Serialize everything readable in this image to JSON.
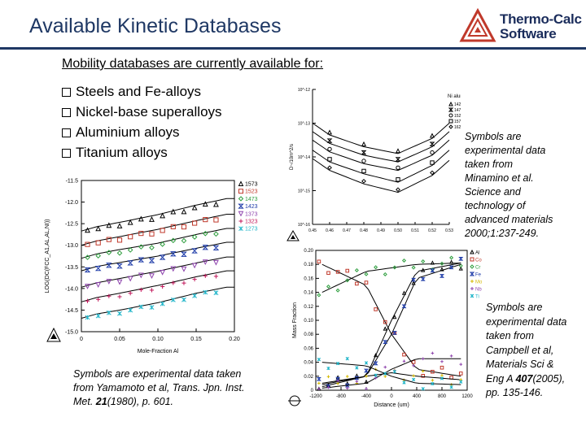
{
  "header": {
    "title": "Available Kinetic Databases",
    "brand_line1": "Thermo-Calc",
    "brand_line2": "Software",
    "brand_color": "#c0392b",
    "accent_color": "#1f3864"
  },
  "intro": {
    "subtitle": "Mobility databases are currently available for:",
    "bullets": [
      "Steels and Fe-alloys",
      "Nickel-base superalloys",
      "Aluminium alloys",
      "Titanium alloys"
    ]
  },
  "notes": {
    "minamino": "Symbols are experimental data taken from Minamino et al. Science and technology of advanced materials 2000;1:237-249.",
    "campbell_before": "Symbols are experimental data taken from Campbell et al, Materials Sci & Eng A ",
    "campbell_bold": "407",
    "campbell_after": "(2005), pp. 135-146.",
    "yamamoto_before": "Symbols are experimental data taken from Yamamoto et al, Trans. Jpn. Inst. Met. ",
    "yamamoto_bold": "21",
    "yamamoto_after": "(1980), p. 601."
  },
  "chart_data": [
    {
      "type": "scatter",
      "xlabel": "Mole-Fraction Al",
      "ylabel": "LOG(DC(FCC_A1,AL,AL,NI))",
      "xlim": [
        0,
        0.2
      ],
      "ylim": [
        -15.0,
        -11.5
      ],
      "xticks": [
        "0",
        "0.05",
        "0.10",
        "0.15",
        "0.20"
      ],
      "yticks": [
        "-11.5",
        "-12.0",
        "-12.5",
        "-13.0",
        "-13.5",
        "-14.0",
        "-14.5",
        "-15.0"
      ],
      "legend_position": "right",
      "series": [
        {
          "name": "1573",
          "color": "#000000",
          "marker": "triangle",
          "values": [
            [
              0.02,
              -12.62
            ],
            [
              0.05,
              -12.52
            ],
            [
              0.1,
              -12.34
            ],
            [
              0.15,
              -12.12
            ],
            [
              0.19,
              -11.97
            ]
          ]
        },
        {
          "name": "1523",
          "color": "#c0392b",
          "marker": "square",
          "values": [
            [
              0.02,
              -12.95
            ],
            [
              0.05,
              -12.85
            ],
            [
              0.1,
              -12.68
            ],
            [
              0.15,
              -12.48
            ],
            [
              0.19,
              -12.33
            ]
          ]
        },
        {
          "name": "1473",
          "color": "#2e9e3e",
          "marker": "diamond",
          "values": [
            [
              0.02,
              -13.25
            ],
            [
              0.05,
              -13.15
            ],
            [
              0.1,
              -13.0
            ],
            [
              0.15,
              -12.8
            ],
            [
              0.19,
              -12.66
            ]
          ]
        },
        {
          "name": "1423",
          "color": "#1c3aa8",
          "marker": "hourglass",
          "values": [
            [
              0.02,
              -13.54
            ],
            [
              0.05,
              -13.45
            ],
            [
              0.1,
              -13.3
            ],
            [
              0.15,
              -13.12
            ],
            [
              0.19,
              -12.98
            ]
          ]
        },
        {
          "name": "1373",
          "color": "#8e44ad",
          "marker": "triangle-down",
          "values": [
            [
              0.02,
              -13.92
            ],
            [
              0.05,
              -13.82
            ],
            [
              0.1,
              -13.65
            ],
            [
              0.15,
              -13.46
            ],
            [
              0.19,
              -13.32
            ]
          ]
        },
        {
          "name": "1323",
          "color": "#c2185b",
          "marker": "plus",
          "values": [
            [
              0.02,
              -14.26
            ],
            [
              0.05,
              -14.16
            ],
            [
              0.1,
              -13.98
            ],
            [
              0.15,
              -13.78
            ],
            [
              0.19,
              -13.64
            ]
          ]
        },
        {
          "name": "1273",
          "color": "#1fb5c9",
          "marker": "star",
          "values": [
            [
              0.02,
              -14.64
            ],
            [
              0.05,
              -14.55
            ],
            [
              0.1,
              -14.38
            ],
            [
              0.15,
              -14.16
            ],
            [
              0.19,
              -14.02
            ]
          ]
        }
      ]
    },
    {
      "type": "scatter",
      "xlabel": "",
      "ylabel": "D~/10m^2/s",
      "xlim": [
        0.45,
        0.53
      ],
      "ylim": [
        -16,
        -12
      ],
      "xticks": [
        "0.45",
        "0.46",
        "0.47",
        "0.48",
        "0.49",
        "0.50",
        "0.51",
        "0.52",
        "0.53"
      ],
      "yticks": [
        "10^-12",
        "10^-13",
        "10^-14",
        "10^-15",
        "10^-16"
      ],
      "legend_title": "Ni aluminide",
      "legend_position": "top-right",
      "series": [
        {
          "name": "1423 K",
          "marker": "triangle",
          "values": [
            [
              0.46,
              -13.35
            ],
            [
              0.48,
              -13.7
            ],
            [
              0.5,
              -13.9
            ],
            [
              0.52,
              -13.45
            ]
          ]
        },
        {
          "name": "1473 K",
          "marker": "hourglass",
          "values": [
            [
              0.46,
              -13.6
            ],
            [
              0.48,
              -13.95
            ],
            [
              0.5,
              -14.15
            ],
            [
              0.52,
              -13.7
            ]
          ]
        },
        {
          "name": "1523 K",
          "marker": "circle",
          "values": [
            [
              0.46,
              -13.85
            ],
            [
              0.48,
              -14.2
            ],
            [
              0.5,
              -14.4
            ],
            [
              0.52,
              -13.95
            ]
          ]
        },
        {
          "name": "1573 K",
          "marker": "square",
          "values": [
            [
              0.46,
              -14.15
            ],
            [
              0.48,
              -14.5
            ],
            [
              0.5,
              -14.75
            ],
            [
              0.52,
              -14.25
            ]
          ]
        },
        {
          "name": "1623 K",
          "marker": "diamond",
          "values": [
            [
              0.46,
              -14.4
            ],
            [
              0.48,
              -14.8
            ],
            [
              0.5,
              -15.05
            ],
            [
              0.52,
              -14.55
            ]
          ]
        }
      ]
    },
    {
      "type": "scatter",
      "xlabel": "Distance (um)",
      "ylabel": "Mass Fraction",
      "xlim": [
        -1200,
        1200
      ],
      "ylim": [
        0,
        0.2
      ],
      "xticks": [
        "-1200",
        "-800",
        "-400",
        "0",
        "400",
        "800",
        "1200"
      ],
      "yticks": [
        "0.20",
        "0.18",
        "0.16",
        "0.14",
        "0.12",
        "0.10",
        "0.08",
        "0.06",
        "0.04",
        "0.02",
        "0"
      ],
      "legend_position": "right",
      "series": [
        {
          "name": "Al",
          "color": "#000000",
          "values": [
            [
              -1100,
              0.005
            ],
            [
              -400,
              0.02
            ],
            [
              0,
              0.1
            ],
            [
              400,
              0.17
            ],
            [
              1100,
              0.182
            ]
          ]
        },
        {
          "name": "Co",
          "color": "#c0392b",
          "values": [
            [
              -1100,
              0.18
            ],
            [
              -400,
              0.15
            ],
            [
              0,
              0.08
            ],
            [
              400,
              0.03
            ],
            [
              1100,
              0.02
            ]
          ]
        },
        {
          "name": "Cr",
          "color": "#2e9e3e",
          "values": [
            [
              -1100,
              0.14
            ],
            [
              -400,
              0.17
            ],
            [
              0,
              0.175
            ],
            [
              400,
              0.18
            ],
            [
              1100,
              0.182
            ]
          ]
        },
        {
          "name": "Fe",
          "color": "#1c3aa8",
          "values": [
            [
              -1100,
              0.008
            ],
            [
              -400,
              0.02
            ],
            [
              0,
              0.08
            ],
            [
              400,
              0.16
            ],
            [
              1100,
              0.18
            ]
          ]
        },
        {
          "name": "Mo",
          "color": "#d4b800",
          "values": [
            [
              -1100,
              0.01
            ],
            [
              -400,
              0.02
            ],
            [
              0,
              0.025
            ],
            [
              400,
              0.02
            ],
            [
              1100,
              0.015
            ]
          ]
        },
        {
          "name": "Nb",
          "color": "#8e44ad",
          "values": [
            [
              -1100,
              0.003
            ],
            [
              -400,
              0.01
            ],
            [
              0,
              0.03
            ],
            [
              400,
              0.045
            ],
            [
              1100,
              0.045
            ]
          ]
        },
        {
          "name": "Ti",
          "color": "#1fb5c9",
          "values": [
            [
              -1100,
              0.04
            ],
            [
              -400,
              0.035
            ],
            [
              0,
              0.02
            ],
            [
              400,
              0.01
            ],
            [
              1100,
              0.008
            ]
          ]
        }
      ]
    }
  ]
}
